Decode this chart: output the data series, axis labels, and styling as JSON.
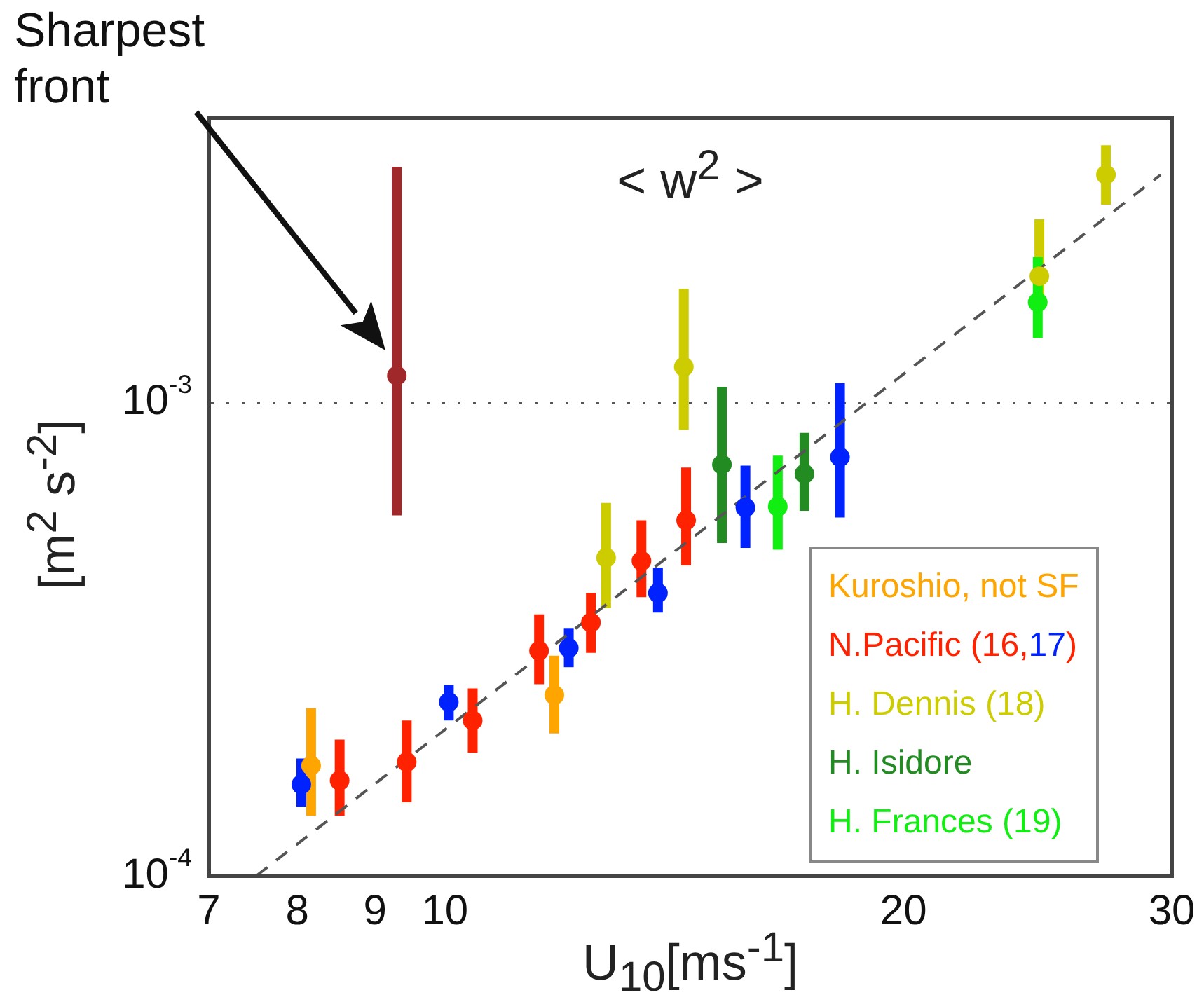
{
  "chart_data": {
    "type": "scatter",
    "title": "< w$^{2}$ >",
    "xlabel": "U$_{10}$[ms$^{-1}$]",
    "ylabel": "[m$^{2}$ s$^{-2}$]",
    "log": "xy",
    "xlim": [
      7,
      30
    ],
    "xticks": [
      7,
      8,
      9,
      10,
      20,
      30
    ],
    "ylim": [
      0.0001,
      0.004
    ],
    "yticks": [
      {
        "value": 0.0001,
        "label": "10$^{-4}$"
      },
      {
        "value": 0.001,
        "label": "10$^{-3}$"
      }
    ],
    "grid": "y",
    "legend": "bottom right",
    "marker": "circle",
    "annotations": [
      "Sharpest front"
    ],
    "series": [
      {
        "name": "Kuroshio, not SF",
        "color": "#ffa500",
        "x": [
          8.17,
          11.8
        ],
        "values": [
          0.000171,
          0.000241
        ],
        "errors": [
          [
            0.000134,
            0.000226
          ],
          [
            0.0002,
            0.000292
          ]
        ]
      },
      {
        "name": "N.Pacific (16,17)",
        "color": "#ff2200",
        "x": [
          8.53,
          9.44,
          10.43,
          11.53,
          12.47,
          13.46,
          14.4
        ],
        "values": [
          0.000159,
          0.000174,
          0.000213,
          0.000299,
          0.000343,
          0.000463,
          0.000564
        ],
        "errors": [
          [
            0.000134,
            0.000194
          ],
          [
            0.000143,
            0.000213
          ],
          [
            0.000182,
            0.000249
          ],
          [
            0.000254,
            0.000357
          ],
          [
            0.000296,
            0.000396
          ],
          [
            0.000388,
            0.000564
          ],
          [
            0.000453,
            0.000729
          ]
        ]
      },
      {
        "color": "#0022ff",
        "x": [
          8.05,
          10.06,
          12.06,
          13.8,
          15.75,
          18.17
        ],
        "values": [
          0.000156,
          0.000233,
          0.000303,
          0.000396,
          0.0006,
          0.000767
        ],
        "errors": [
          [
            0.00014,
            0.000177
          ],
          [
            0.000213,
            0.000253
          ],
          [
            0.000276,
            0.000334
          ],
          [
            0.00036,
            0.000448
          ],
          [
            0.000493,
            0.000736
          ],
          [
            0.000572,
            0.0011
          ]
        ]
      },
      {
        "name": "H. Dennis (18)",
        "color": "#cccc00",
        "x": [
          12.76,
          14.35,
          24.56,
          27.16
        ],
        "values": [
          0.00047,
          0.00119,
          0.00185,
          0.00303
        ],
        "errors": [
          [
            0.000368,
            0.000614
          ],
          [
            0.000876,
            0.00174
          ],
          [
            0.0016,
            0.00244
          ],
          [
            0.00262,
            0.0035
          ]
        ]
      },
      {
        "name": "H. Isidore",
        "color": "#228b22",
        "x": [
          15.2,
          17.22
        ],
        "values": [
          0.00074,
          0.000707
        ],
        "errors": [
          [
            0.000505,
            0.00108
          ],
          [
            0.000591,
            0.000863
          ]
        ]
      },
      {
        "name": "H. Frances (19)",
        "color": "#11ee11",
        "x": [
          16.54,
          24.5
        ],
        "values": [
          0.000603,
          0.00163
        ],
        "errors": [
          [
            0.000489,
            0.000773
          ],
          [
            0.00137,
            0.00203
          ]
        ]
      },
      {
        "type": "line",
        "color": "#555555",
        "x": [
          7.52,
          29.5
        ],
        "values": [
          0.0001,
          0.00303
        ],
        "line_style": "dashed",
        "marker": "none"
      },
      {
        "color": "#a0282a",
        "x": [
          9.3
        ],
        "values": [
          0.00114
        ],
        "errors": [
          [
            0.000578,
            0.00315
          ]
        ]
      }
    ]
  }
}
